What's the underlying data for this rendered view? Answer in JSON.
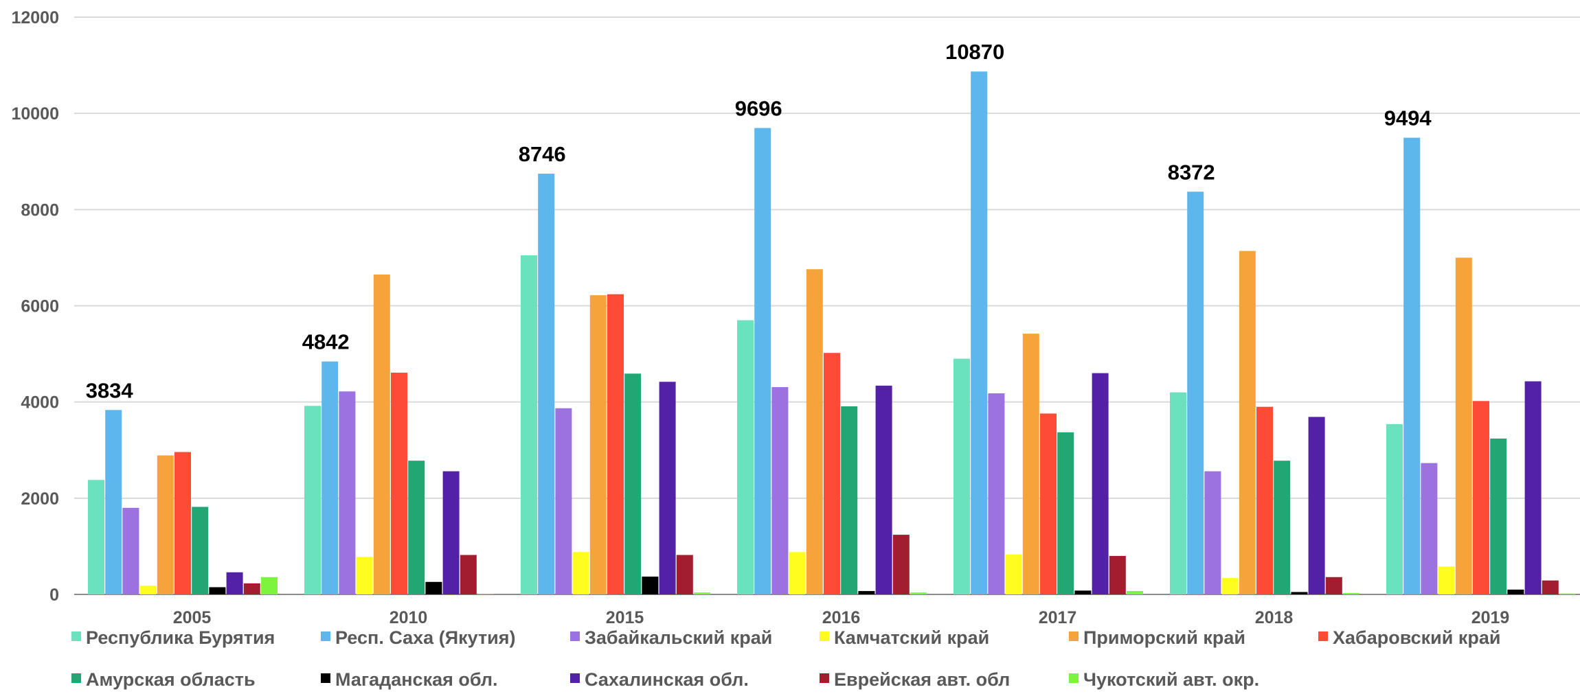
{
  "chart_data": {
    "type": "bar",
    "title": "",
    "xlabel": "",
    "ylabel": "",
    "ylim": [
      0,
      12000
    ],
    "yticks": [
      0,
      2000,
      4000,
      6000,
      8000,
      10000,
      12000
    ],
    "grid": true,
    "legend_position": "bottom",
    "categories": [
      "2005",
      "2010",
      "2015",
      "2016",
      "2017",
      "2018",
      "2019"
    ],
    "series": [
      {
        "name": "Республика Бурятия",
        "color": "#6ae2bd",
        "values": [
          2380,
          3920,
          7050,
          5700,
          4900,
          4200,
          3540
        ]
      },
      {
        "name": "Респ. Саха (Якутия)",
        "color": "#5db6ec",
        "values": [
          3834,
          4842,
          8746,
          9696,
          10870,
          8372,
          9494
        ]
      },
      {
        "name": "Забайкальский край",
        "color": "#9c72e0",
        "values": [
          1800,
          4220,
          3870,
          4310,
          4180,
          2560,
          2730
        ]
      },
      {
        "name": "Камчатский край",
        "color": "#fffc1f",
        "values": [
          180,
          780,
          880,
          880,
          830,
          340,
          580
        ]
      },
      {
        "name": "Приморский край",
        "color": "#f5a33a",
        "values": [
          2890,
          6650,
          6220,
          6760,
          5420,
          7140,
          7000
        ]
      },
      {
        "name": "Хабаровский край",
        "color": "#fd4b37",
        "values": [
          2960,
          4610,
          6240,
          5020,
          3760,
          3900,
          4020
        ]
      },
      {
        "name": "Амурская область",
        "color": "#22a774",
        "values": [
          1820,
          2780,
          4590,
          3910,
          3370,
          2780,
          3240
        ]
      },
      {
        "name": "Магаданская обл.",
        "color": "#000000",
        "values": [
          150,
          260,
          370,
          70,
          80,
          50,
          100
        ]
      },
      {
        "name": "Сахалинская обл.",
        "color": "#5221a6",
        "values": [
          460,
          2560,
          4420,
          4340,
          4600,
          3690,
          4430
        ]
      },
      {
        "name": "Еврейская авт. обл",
        "color": "#a21d2e",
        "values": [
          230,
          820,
          820,
          1240,
          800,
          360,
          290
        ]
      },
      {
        "name": "Чукотский авт. окр.",
        "color": "#7cf33c",
        "values": [
          360,
          10,
          40,
          40,
          70,
          30,
          20
        ]
      }
    ],
    "data_labels": {
      "series_index": 1,
      "values": [
        "3834",
        "4842",
        "8746",
        "9696",
        "10870",
        "8372",
        "9494"
      ]
    }
  }
}
